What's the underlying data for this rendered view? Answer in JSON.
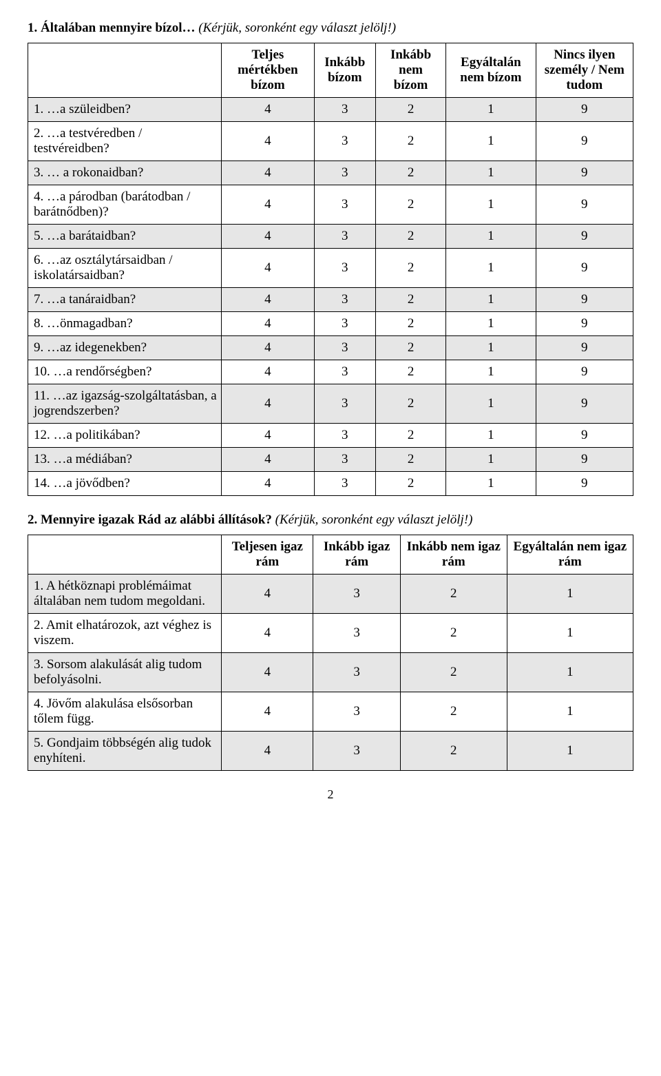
{
  "q1": {
    "title_bold": "1. Általában mennyire bízol…",
    "title_ital": "(Kérjük, soronként egy választ jelölj!)",
    "headers": [
      "Teljes mértékben bízom",
      "Inkább bízom",
      "Inkább nem bízom",
      "Egyáltalán nem bízom",
      "Nincs ilyen személy / Nem tudom"
    ],
    "rows": [
      {
        "label": "1.  …a szüleidben?",
        "v": [
          "4",
          "3",
          "2",
          "1",
          "9"
        ],
        "shaded": true
      },
      {
        "label": "2.  …a testvéredben / testvéreidben?",
        "v": [
          "4",
          "3",
          "2",
          "1",
          "9"
        ],
        "shaded": false
      },
      {
        "label": "3.   … a rokonaidban?",
        "v": [
          "4",
          "3",
          "2",
          "1",
          "9"
        ],
        "shaded": true
      },
      {
        "label": "4.  …a párodban (barátodban / barátnődben)?",
        "v": [
          "4",
          "3",
          "2",
          "1",
          "9"
        ],
        "shaded": false
      },
      {
        "label": "5.  …a barátaidban?",
        "v": [
          "4",
          "3",
          "2",
          "1",
          "9"
        ],
        "shaded": true
      },
      {
        "label": "6.  …az osztálytársaidban / iskolatársaidban?",
        "v": [
          "4",
          "3",
          "2",
          "1",
          "9"
        ],
        "shaded": false
      },
      {
        "label": "7.   …a tanáraidban?",
        "v": [
          "4",
          "3",
          "2",
          "1",
          "9"
        ],
        "shaded": true
      },
      {
        "label": "8.   …önmagadban?",
        "v": [
          "4",
          "3",
          "2",
          "1",
          "9"
        ],
        "shaded": false
      },
      {
        "label": "9.   …az idegenekben?",
        "v": [
          "4",
          "3",
          "2",
          "1",
          "9"
        ],
        "shaded": true
      },
      {
        "label": "10.  …a rendőrségben?",
        "v": [
          "4",
          "3",
          "2",
          "1",
          "9"
        ],
        "shaded": false
      },
      {
        "label": "11.  …az igazság-szolgáltatásban, a jogrendszerben?",
        "v": [
          "4",
          "3",
          "2",
          "1",
          "9"
        ],
        "shaded": true
      },
      {
        "label": "12.  …a politikában?",
        "v": [
          "4",
          "3",
          "2",
          "1",
          "9"
        ],
        "shaded": false
      },
      {
        "label": "13.   …a médiában?",
        "v": [
          "4",
          "3",
          "2",
          "1",
          "9"
        ],
        "shaded": true
      },
      {
        "label": "14.  …a jövődben?",
        "v": [
          "4",
          "3",
          "2",
          "1",
          "9"
        ],
        "shaded": false
      }
    ]
  },
  "q2": {
    "title_bold": "2. Mennyire igazak Rád az alábbi állítások?",
    "title_ital": "(Kérjük, soronként egy választ jelölj!)",
    "headers": [
      "Teljesen igaz rám",
      "Inkább igaz rám",
      "Inkább nem igaz rám",
      "Egyáltalán nem igaz rám"
    ],
    "rows": [
      {
        "label": "1.   A hétköznapi problémáimat általában nem tudom megoldani.",
        "v": [
          "4",
          "3",
          "2",
          "1"
        ],
        "shaded": true
      },
      {
        "label": "2.   Amit elhatározok, azt véghez is viszem.",
        "v": [
          "4",
          "3",
          "2",
          "1"
        ],
        "shaded": false
      },
      {
        "label": "3.   Sorsom alakulását alig tudom befolyásolni.",
        "v": [
          "4",
          "3",
          "2",
          "1"
        ],
        "shaded": true
      },
      {
        "label": "4.   Jövőm alakulása elsősorban tőlem függ.",
        "v": [
          "4",
          "3",
          "2",
          "1"
        ],
        "shaded": false
      },
      {
        "label": "5.   Gondjaim többségén alig tudok enyhíteni.",
        "v": [
          "4",
          "3",
          "2",
          "1"
        ],
        "shaded": true
      }
    ]
  },
  "pagenum": "2"
}
